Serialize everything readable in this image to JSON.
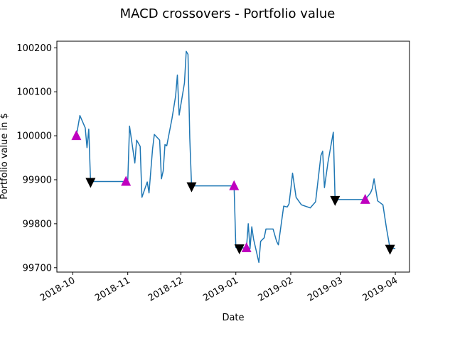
{
  "chart_data": {
    "type": "line",
    "title": "MACD crossovers - Portfolio value",
    "xlabel": "Date",
    "ylabel": "Portfolio value in $",
    "ylim": [
      99690,
      100215
    ],
    "xlim": [
      "2018-09-22",
      "2019-04-09"
    ],
    "grid": false,
    "line_color": "#1f77b4",
    "buy_marker_color": "#bf00bf",
    "sell_marker_color": "#000000",
    "x_ticks": [
      {
        "date": "2018-10-01",
        "label": "2018-10"
      },
      {
        "date": "2018-11-01",
        "label": "2018-11"
      },
      {
        "date": "2018-12-01",
        "label": "2018-12"
      },
      {
        "date": "2019-01-01",
        "label": "2019-01"
      },
      {
        "date": "2019-02-01",
        "label": "2019-02"
      },
      {
        "date": "2019-03-01",
        "label": "2019-03"
      },
      {
        "date": "2019-04-01",
        "label": "2019-04"
      }
    ],
    "y_ticks": [
      {
        "value": 99700,
        "label": "99700"
      },
      {
        "value": 99800,
        "label": "99800"
      },
      {
        "value": 99900,
        "label": "99900"
      },
      {
        "value": 100000,
        "label": "100000"
      },
      {
        "value": 100100,
        "label": "100100"
      },
      {
        "value": 100200,
        "label": "100200"
      }
    ],
    "series": [
      {
        "values": [
          [
            "2018-10-03",
            100000
          ],
          [
            "2018-10-05",
            100046
          ],
          [
            "2018-10-08",
            100018
          ],
          [
            "2018-10-09",
            99973
          ],
          [
            "2018-10-10",
            100015
          ],
          [
            "2018-10-11",
            99896
          ],
          [
            "2018-10-31",
            99896
          ],
          [
            "2018-11-01",
            99896
          ],
          [
            "2018-11-02",
            100022
          ],
          [
            "2018-11-05",
            99938
          ],
          [
            "2018-11-06",
            99990
          ],
          [
            "2018-11-08",
            99976
          ],
          [
            "2018-11-09",
            99860
          ],
          [
            "2018-11-12",
            99895
          ],
          [
            "2018-11-13",
            99870
          ],
          [
            "2018-11-15",
            99970
          ],
          [
            "2018-11-16",
            100003
          ],
          [
            "2018-11-19",
            99990
          ],
          [
            "2018-11-20",
            99902
          ],
          [
            "2018-11-21",
            99920
          ],
          [
            "2018-11-22",
            99980
          ],
          [
            "2018-11-23",
            99977
          ],
          [
            "2018-11-26",
            100040
          ],
          [
            "2018-11-28",
            100090
          ],
          [
            "2018-11-29",
            100138
          ],
          [
            "2018-11-30",
            100047
          ],
          [
            "2018-12-03",
            100120
          ],
          [
            "2018-12-04",
            100192
          ],
          [
            "2018-12-05",
            100185
          ],
          [
            "2018-12-06",
            99995
          ],
          [
            "2018-12-07",
            99886
          ],
          [
            "2018-12-31",
            99886
          ],
          [
            "2019-01-01",
            99746
          ],
          [
            "2019-01-03",
            99745
          ],
          [
            "2019-01-07",
            99745
          ],
          [
            "2019-01-08",
            99800
          ],
          [
            "2019-01-09",
            99743
          ],
          [
            "2019-01-10",
            99793
          ],
          [
            "2019-01-11",
            99765
          ],
          [
            "2019-01-14",
            99712
          ],
          [
            "2019-01-15",
            99760
          ],
          [
            "2019-01-17",
            99768
          ],
          [
            "2019-01-18",
            99788
          ],
          [
            "2019-01-21",
            99788
          ],
          [
            "2019-01-22",
            99788
          ],
          [
            "2019-01-24",
            99760
          ],
          [
            "2019-01-25",
            99752
          ],
          [
            "2019-01-28",
            99840
          ],
          [
            "2019-01-30",
            99838
          ],
          [
            "2019-01-31",
            99845
          ],
          [
            "2019-02-01",
            99878
          ],
          [
            "2019-02-02",
            99915
          ],
          [
            "2019-02-04",
            99860
          ],
          [
            "2019-02-07",
            99843
          ],
          [
            "2019-02-12",
            99836
          ],
          [
            "2019-02-15",
            99850
          ],
          [
            "2019-02-18",
            99955
          ],
          [
            "2019-02-19",
            99965
          ],
          [
            "2019-02-20",
            99882
          ],
          [
            "2019-02-22",
            99940
          ],
          [
            "2019-02-25",
            100008
          ],
          [
            "2019-02-26",
            99855
          ],
          [
            "2019-03-15",
            99855
          ],
          [
            "2019-03-18",
            99870
          ],
          [
            "2019-03-19",
            99880
          ],
          [
            "2019-03-20",
            99902
          ],
          [
            "2019-03-22",
            99852
          ],
          [
            "2019-03-25",
            99843
          ],
          [
            "2019-03-27",
            99790
          ],
          [
            "2019-03-29",
            99744
          ],
          [
            "2019-04-01",
            99744
          ]
        ]
      }
    ],
    "buy_signals": [
      [
        "2018-10-03",
        100000
      ],
      [
        "2018-10-31",
        99896
      ],
      [
        "2018-12-31",
        99886
      ],
      [
        "2019-01-07",
        99745
      ],
      [
        "2019-03-15",
        99855
      ]
    ],
    "sell_signals": [
      [
        "2018-10-11",
        99896
      ],
      [
        "2018-12-07",
        99886
      ],
      [
        "2019-01-03",
        99745
      ],
      [
        "2019-02-26",
        99855
      ],
      [
        "2019-03-29",
        99744
      ]
    ]
  }
}
